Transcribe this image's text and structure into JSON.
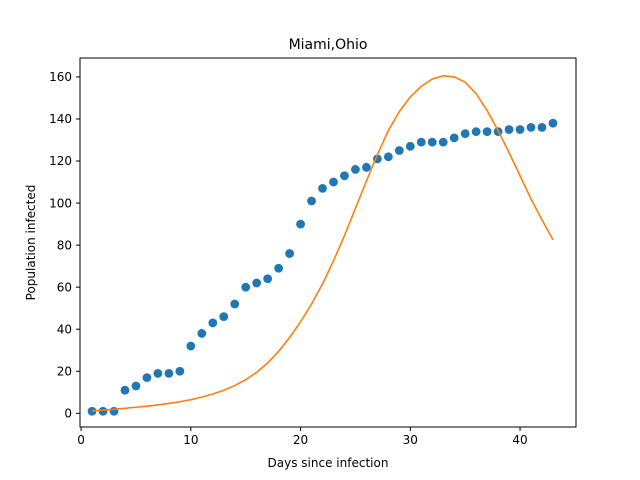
{
  "chart_data": {
    "type": "scatter",
    "title": "Miami,Ohio",
    "xlabel": "Days since infection",
    "ylabel": "Population infected",
    "xlim": [
      -0.1,
      45.1
    ],
    "ylim": [
      -6.5,
      169
    ],
    "grid": false,
    "legend": "none",
    "xticks": [
      0,
      10,
      20,
      30,
      40
    ],
    "yticks": [
      0,
      20,
      40,
      60,
      80,
      100,
      120,
      140,
      160
    ],
    "series": [
      {
        "kind": "scatter",
        "color": "#1f77b4",
        "points": [
          [
            1,
            1
          ],
          [
            2,
            1
          ],
          [
            3,
            1
          ],
          [
            4,
            11
          ],
          [
            5,
            13
          ],
          [
            6,
            17
          ],
          [
            7,
            19
          ],
          [
            8,
            19
          ],
          [
            9,
            20
          ],
          [
            10,
            32
          ],
          [
            11,
            38
          ],
          [
            12,
            43
          ],
          [
            13,
            46
          ],
          [
            14,
            52
          ],
          [
            15,
            60
          ],
          [
            16,
            62
          ],
          [
            17,
            64
          ],
          [
            18,
            69
          ],
          [
            19,
            76
          ],
          [
            20,
            90
          ],
          [
            21,
            101
          ],
          [
            22,
            107
          ],
          [
            23,
            110
          ],
          [
            24,
            113
          ],
          [
            25,
            116
          ],
          [
            26,
            117
          ],
          [
            27,
            121
          ],
          [
            28,
            122
          ],
          [
            29,
            125
          ],
          [
            30,
            127
          ],
          [
            31,
            129
          ],
          [
            32,
            129
          ],
          [
            33,
            129
          ],
          [
            34,
            131
          ],
          [
            35,
            133
          ],
          [
            36,
            134
          ],
          [
            37,
            134
          ],
          [
            38,
            134
          ],
          [
            39,
            135
          ],
          [
            40,
            135
          ],
          [
            41,
            136
          ],
          [
            42,
            136
          ],
          [
            43,
            138
          ]
        ]
      },
      {
        "kind": "line",
        "color": "#ff7f0e",
        "points": [
          [
            1,
            1.2
          ],
          [
            2,
            1.5
          ],
          [
            3,
            1.9
          ],
          [
            4,
            2.4
          ],
          [
            5,
            2.9
          ],
          [
            6,
            3.4
          ],
          [
            7,
            4
          ],
          [
            8,
            4.7
          ],
          [
            9,
            5.5
          ],
          [
            10,
            6.5
          ],
          [
            11,
            7.7
          ],
          [
            12,
            9.2
          ],
          [
            13,
            11
          ],
          [
            14,
            13.2
          ],
          [
            15,
            16
          ],
          [
            16,
            19.5
          ],
          [
            17,
            24
          ],
          [
            18,
            29.5
          ],
          [
            19,
            36
          ],
          [
            20,
            43.5
          ],
          [
            21,
            52
          ],
          [
            22,
            61.5
          ],
          [
            23,
            72.5
          ],
          [
            24,
            84.5
          ],
          [
            25,
            97.5
          ],
          [
            26,
            110.5
          ],
          [
            27,
            123
          ],
          [
            28,
            134.5
          ],
          [
            29,
            143.5
          ],
          [
            30,
            150.5
          ],
          [
            31,
            155.5
          ],
          [
            32,
            159
          ],
          [
            33,
            160.5
          ],
          [
            34,
            160
          ],
          [
            35,
            157.5
          ],
          [
            36,
            152
          ],
          [
            37,
            144
          ],
          [
            38,
            134.5
          ],
          [
            39,
            124
          ],
          [
            40,
            113
          ],
          [
            41,
            102
          ],
          [
            42,
            92
          ],
          [
            43,
            82.5
          ]
        ]
      }
    ]
  }
}
